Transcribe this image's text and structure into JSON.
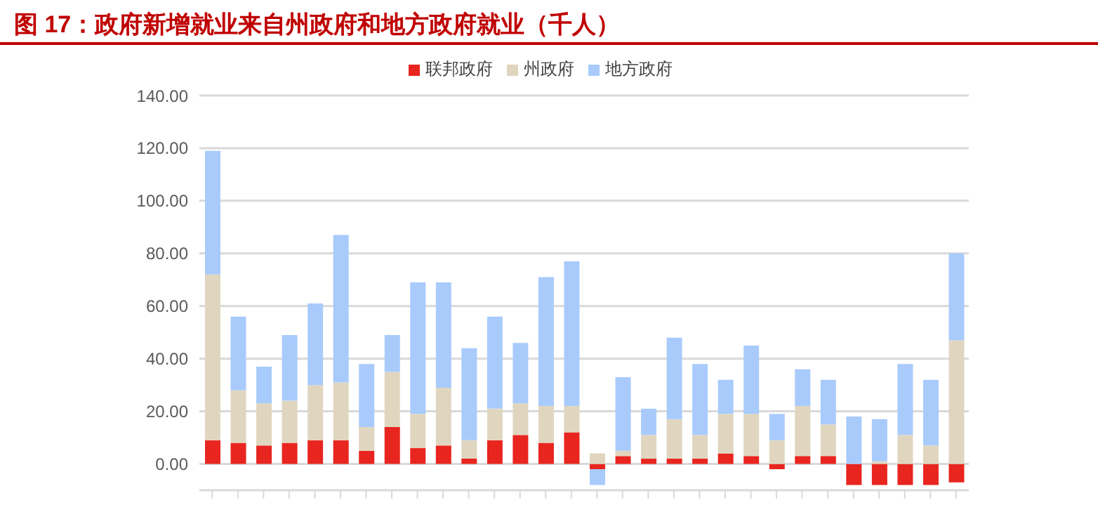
{
  "chart_data": {
    "type": "bar",
    "title": "图 17：政府新增就业来自州政府和地方政府就业（千人）",
    "stacked": true,
    "categories": [
      null,
      null,
      null,
      null,
      null,
      null,
      null,
      null,
      null,
      null,
      null,
      null,
      null,
      null,
      null,
      null,
      null,
      null,
      null,
      null,
      null,
      null,
      null,
      null,
      null,
      null,
      null,
      null,
      null,
      null
    ],
    "series": [
      {
        "name": "联邦政府",
        "color": "#e8251f",
        "values": [
          9,
          8,
          7,
          8,
          9,
          9,
          5,
          14,
          6,
          7,
          2,
          9,
          11,
          8,
          12,
          -2,
          3,
          2,
          2,
          2,
          4,
          3,
          -2,
          3,
          3,
          -8,
          -8,
          -8,
          -8,
          -7
        ]
      },
      {
        "name": "州政府",
        "color": "#e0d6bf",
        "values": [
          63,
          20,
          16,
          16,
          21,
          22,
          9,
          21,
          13,
          22,
          7,
          12,
          12,
          14,
          10,
          4,
          2,
          9,
          15,
          9,
          15,
          16,
          9,
          19,
          12,
          0,
          1,
          11,
          7,
          47
        ]
      },
      {
        "name": "地方政府",
        "color": "#a9cbfc",
        "values": [
          47,
          28,
          14,
          25,
          31,
          56,
          24,
          14,
          50,
          40,
          35,
          35,
          23,
          49,
          55,
          -6,
          28,
          10,
          31,
          27,
          13,
          26,
          10,
          14,
          17,
          18,
          16,
          27,
          25,
          33
        ]
      }
    ],
    "ylim": [
      -10,
      140
    ],
    "yticks": [
      {
        "value": 0,
        "label": "0.00"
      },
      {
        "value": 20,
        "label": "20.00"
      },
      {
        "value": 40,
        "label": "40.00"
      },
      {
        "value": 60,
        "label": "60.00"
      },
      {
        "value": 80,
        "label": "80.00"
      },
      {
        "value": 100,
        "label": "100.00"
      },
      {
        "value": 120,
        "label": "120.00"
      },
      {
        "value": 140,
        "label": "140.00"
      }
    ],
    "grid": "y",
    "legend": "top"
  }
}
